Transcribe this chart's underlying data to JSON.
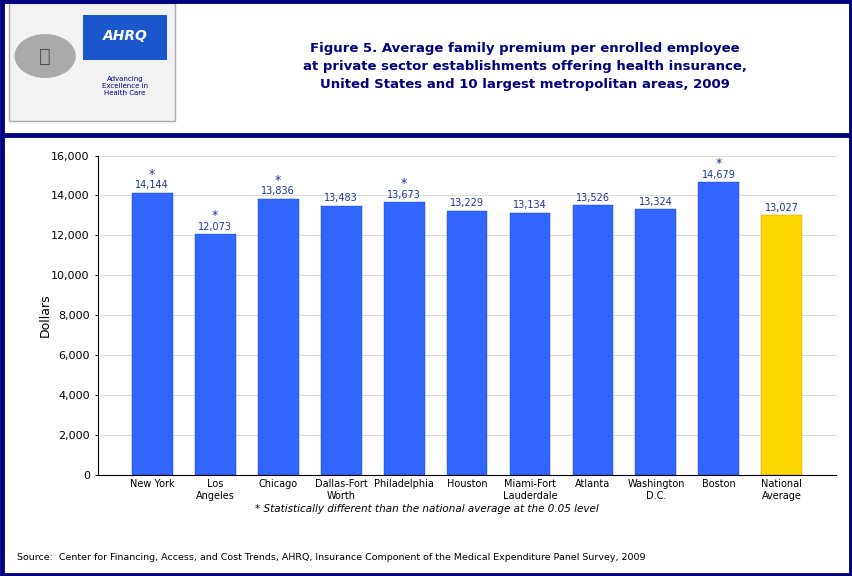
{
  "categories": [
    "New York",
    "Los\nAngeles",
    "Chicago",
    "Dallas-Fort\nWorth",
    "Philadelphia",
    "Houston",
    "Miami-Fort\nLauderdale",
    "Atlanta",
    "Washington\nD.C.",
    "Boston",
    "National\nAverage"
  ],
  "values": [
    14144,
    12073,
    13836,
    13483,
    13673,
    13229,
    13134,
    13526,
    13324,
    14679,
    13027
  ],
  "statistically_different": [
    true,
    true,
    true,
    false,
    true,
    false,
    false,
    false,
    false,
    true,
    false
  ],
  "value_labels": [
    "14,144",
    "12,073",
    "13,836",
    "13,483",
    "13,673",
    "13,229",
    "13,134",
    "13,526",
    "13,324",
    "14,679",
    "13,027"
  ],
  "ylabel": "Dollars",
  "ylim": [
    0,
    16000
  ],
  "yticks": [
    0,
    2000,
    4000,
    6000,
    8000,
    10000,
    12000,
    14000,
    16000
  ],
  "ytick_labels": [
    "0",
    "2,000",
    "4,000",
    "6,000",
    "8,000",
    "10,000",
    "12,000",
    "14,000",
    "16,000"
  ],
  "title_line1": "Figure 5. Average family premium per enrolled employee",
  "title_line2": "at private sector establishments offering health insurance,",
  "title_line3": "United States and 10 largest metropolitan areas, 2009",
  "footnote": "* Statistically different than the national average at the 0.05 level",
  "source": "Source:  Center for Financing, Access, and Cost Trends, AHRQ, Insurance Component of the Medical Expenditure Panel Survey, 2009",
  "bar_color_blue": "#3366ff",
  "bar_color_yellow": "#FFD700",
  "label_color": "#1a3399",
  "background_color": "#ffffff",
  "header_bg": "#ffffff",
  "border_color": "#000080",
  "title_color": "#000080",
  "separator_color": "#000080",
  "logo_box_color": "#e8eaf6",
  "logo_text_color": "#cc0000",
  "logo_sub_color": "#000080",
  "ahrq_bg": "#1a56cc",
  "ahrq_text": "#ffffff"
}
